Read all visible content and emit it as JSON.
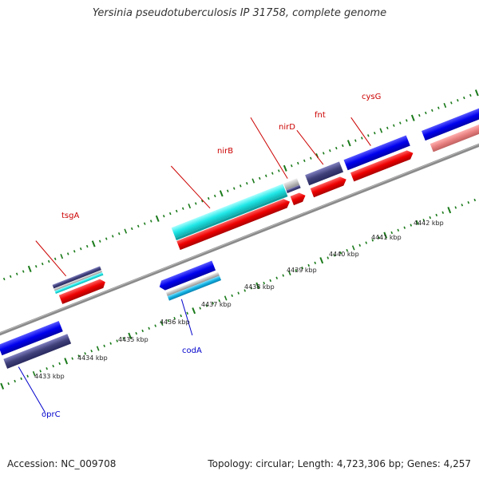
{
  "header": {
    "title": "Yersinia pseudotuberculosis IP 31758, complete genome"
  },
  "footer": {
    "accession": "Accession: NC_009708",
    "summary": "Topology: circular; Length: 4,723,306 bp; Genes: 4,257"
  },
  "colors": {
    "plus_label": "#cc0000",
    "minus_label": "#0000cc",
    "tick": "#1a7a1a",
    "backbone": "#808080"
  },
  "scale_labels": [
    {
      "text": "4433 kbp",
      "kbp": 4433
    },
    {
      "text": "4434 kbp",
      "kbp": 4434
    },
    {
      "text": "4435 kbp",
      "kbp": 4435
    },
    {
      "text": "4436 kbp",
      "kbp": 4436
    },
    {
      "text": "4437 kbp",
      "kbp": 4437
    },
    {
      "text": "4438 kbp",
      "kbp": 4438
    },
    {
      "text": "4439 kbp",
      "kbp": 4439
    },
    {
      "text": "4440 kbp",
      "kbp": 4440
    },
    {
      "text": "4441 kbp",
      "kbp": 4441
    },
    {
      "text": "4442 kbp",
      "kbp": 4442
    }
  ],
  "gene_labels": [
    {
      "name": "tsgA",
      "strand": "plus"
    },
    {
      "name": "nirB",
      "strand": "plus"
    },
    {
      "name": "nirD",
      "strand": "plus"
    },
    {
      "name": "fnt",
      "strand": "plus"
    },
    {
      "name": "cysG",
      "strand": "plus"
    },
    {
      "name": "codA",
      "strand": "minus"
    },
    {
      "name": "oprC",
      "strand": "minus"
    }
  ]
}
